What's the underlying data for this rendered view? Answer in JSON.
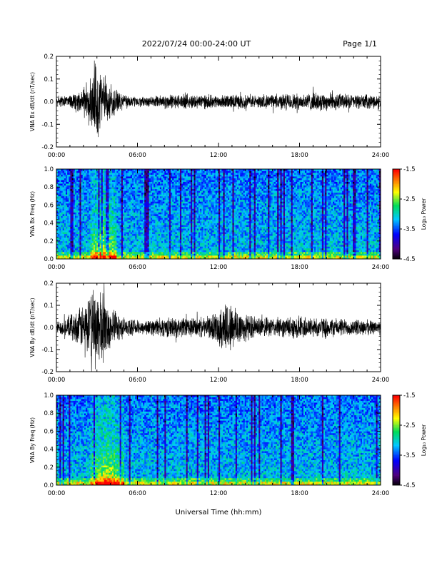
{
  "header": {
    "title": "2022/07/24  00:00-24:00 UT",
    "page": "Page 1/1"
  },
  "xaxis": {
    "label": "Universal Time (hh:mm)",
    "ticks": [
      "00:00",
      "06:00",
      "12:00",
      "18:00",
      "24:00"
    ],
    "range_hours": [
      0,
      24
    ]
  },
  "colorbar": {
    "label": "Log₁₀ Power",
    "ticks": [
      "-1.5",
      "-2.5",
      "-3.5",
      "-4.5"
    ],
    "range": [
      -4.5,
      -1.5
    ]
  },
  "chart_data": [
    {
      "id": "bx-wave",
      "type": "line",
      "ylabel": "VNA Bx dB/dt (nT/sec)",
      "ylim": [
        -0.2,
        0.2
      ],
      "yticks": [
        -0.2,
        -0.1,
        0.0,
        0.1,
        0.2
      ],
      "ytick_labels": [
        "-0.2",
        "-0.1",
        "0.0",
        "0.1",
        "0.2"
      ],
      "x_hours": [
        0,
        0.5,
        1,
        1.5,
        2,
        2.5,
        2.8,
        3.0,
        3.2,
        3.5,
        3.8,
        4.2,
        4.6,
        5,
        5.5,
        6,
        7,
        8,
        9,
        10,
        11,
        12,
        13,
        14,
        15,
        16,
        17,
        18,
        19,
        20,
        21,
        22,
        23,
        24
      ],
      "envelope": [
        0.02,
        0.025,
        0.035,
        0.05,
        0.07,
        0.12,
        0.2,
        0.19,
        0.16,
        0.13,
        0.1,
        0.08,
        0.05,
        0.04,
        0.03,
        0.025,
        0.025,
        0.035,
        0.035,
        0.035,
        0.035,
        0.03,
        0.035,
        0.035,
        0.03,
        0.035,
        0.04,
        0.04,
        0.045,
        0.045,
        0.04,
        0.035,
        0.035,
        0.03
      ]
    },
    {
      "id": "bx-spec",
      "type": "heatmap",
      "ylabel": "VNA Bx Freq (Hz)",
      "ylim": [
        0,
        1.0
      ],
      "yticks": [
        0,
        0.2,
        0.4,
        0.6,
        0.8,
        1.0
      ],
      "ytick_labels": [
        "0.0",
        "0.2",
        "0.4",
        "0.6",
        "0.8",
        "1.0"
      ],
      "zlim": [
        -4.5,
        -1.5
      ],
      "event_hours": [
        2.5,
        4.5
      ]
    },
    {
      "id": "by-wave",
      "type": "line",
      "ylabel": "VNA By dB/dt (nT/sec)",
      "ylim": [
        -0.2,
        0.2
      ],
      "yticks": [
        -0.2,
        -0.1,
        0.0,
        0.1,
        0.2
      ],
      "ytick_labels": [
        "-0.2",
        "-0.1",
        "0.0",
        "0.1",
        "0.2"
      ],
      "x_hours": [
        0,
        0.5,
        1,
        1.5,
        2,
        2.5,
        2.8,
        3.0,
        3.2,
        3.5,
        3.8,
        4.2,
        4.6,
        5,
        5.5,
        6,
        7,
        8,
        9,
        10,
        11,
        11.5,
        12,
        12.5,
        13,
        13.5,
        14,
        15,
        16,
        17,
        18,
        19,
        20,
        21,
        22,
        23,
        24
      ],
      "envelope": [
        0.03,
        0.04,
        0.06,
        0.08,
        0.12,
        0.16,
        0.2,
        0.2,
        0.2,
        0.17,
        0.12,
        0.09,
        0.07,
        0.05,
        0.04,
        0.035,
        0.04,
        0.05,
        0.05,
        0.05,
        0.05,
        0.06,
        0.09,
        0.14,
        0.12,
        0.1,
        0.07,
        0.05,
        0.05,
        0.05,
        0.06,
        0.05,
        0.05,
        0.045,
        0.04,
        0.04,
        0.03
      ]
    },
    {
      "id": "by-spec",
      "type": "heatmap",
      "ylabel": "VNA By Freq (Hz)",
      "ylim": [
        0,
        1.0
      ],
      "yticks": [
        0,
        0.2,
        0.4,
        0.6,
        0.8,
        1.0
      ],
      "ytick_labels": [
        "0.0",
        "0.2",
        "0.4",
        "0.6",
        "0.8",
        "1.0"
      ],
      "zlim": [
        -4.5,
        -1.5
      ],
      "event_hours": [
        2.5,
        5.0
      ]
    }
  ]
}
